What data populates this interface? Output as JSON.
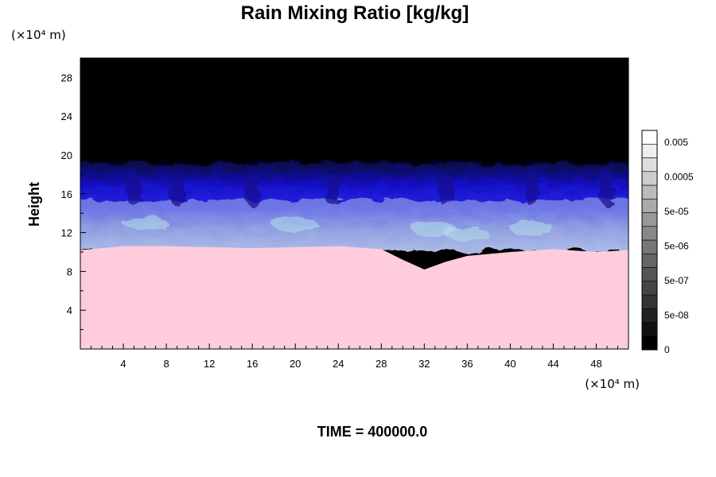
{
  "chart_data": {
    "type": "heatmap",
    "title": "Rain Mixing Ratio [kg/kg]",
    "xlabel": "",
    "ylabel": "Height",
    "x_unit": "(×10⁴ m)",
    "y_unit": "(×10⁴ m)",
    "xlim": [
      0,
      51
    ],
    "ylim": [
      0,
      30
    ],
    "x_ticks": [
      4,
      8,
      12,
      16,
      20,
      24,
      28,
      32,
      36,
      40,
      44,
      48
    ],
    "y_ticks": [
      4,
      8,
      12,
      16,
      20,
      24,
      28
    ],
    "colorbar": {
      "labels": [
        "0.005",
        "0.0005",
        "5e-05",
        "5e-06",
        "5e-07",
        "5e-08",
        "0"
      ],
      "levels": 16
    },
    "regions": [
      {
        "name": "black",
        "color": "#000000",
        "from_height": 19,
        "to_height": 30
      },
      {
        "name": "blue",
        "color": "#1a12c8",
        "from_height": 15,
        "to_height": 19
      },
      {
        "name": "lavender",
        "color": "#a8b8e6",
        "from_height": 10.5,
        "to_height": 15
      },
      {
        "name": "pink",
        "color": "#ffccdd",
        "from_height": 0,
        "to_height": 10.5
      }
    ],
    "pink_top_profile": {
      "x": [
        0,
        4,
        8,
        12,
        16,
        20,
        24,
        28,
        30,
        32,
        34,
        36,
        40,
        44,
        48,
        51
      ],
      "y": [
        10.2,
        10.6,
        10.6,
        10.5,
        10.4,
        10.5,
        10.6,
        10.3,
        9.2,
        8.2,
        9.0,
        9.6,
        10.0,
        10.3,
        10.0,
        10.2
      ]
    },
    "annotation": "TIME = 400000.0"
  }
}
